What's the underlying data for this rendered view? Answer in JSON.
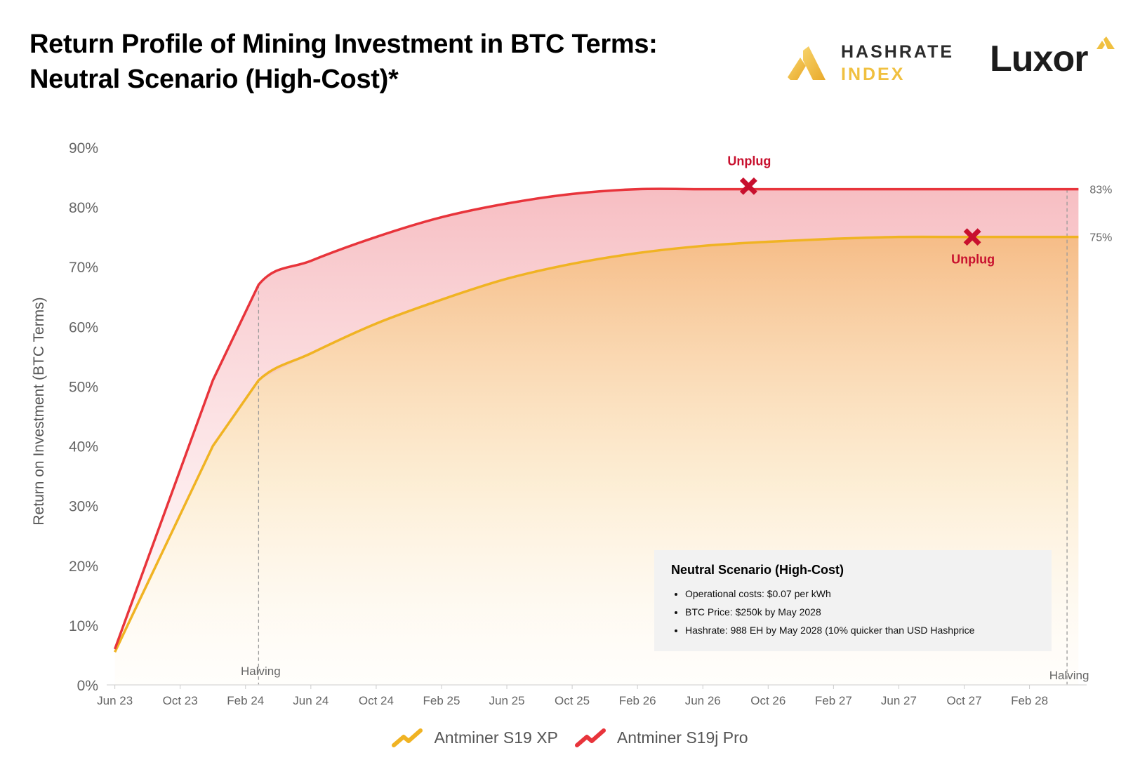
{
  "header": {
    "title_line1": "Return Profile of Mining Investment in BTC Terms:",
    "title_line2": "Neutral Scenario (High-Cost)*"
  },
  "logos": {
    "hashrate_index_line1": "HASHRATE",
    "hashrate_index_line2": "INDEX",
    "luxor": "Luxor"
  },
  "colors": {
    "s19xp": "#f0b323",
    "s19xp_fill": "#f5b57a",
    "s19j_pro": "#e8343b",
    "s19j_pro_fill": "#f4a8ae",
    "unplug": "#c8102e",
    "halving_line": "#9a9a9a",
    "axis_text": "#666666"
  },
  "chart_data": {
    "type": "area",
    "title": "Return Profile of Mining Investment in BTC Terms: Neutral Scenario (High-Cost)*",
    "ylabel": "Return on Investment (BTC Terms)",
    "xlabel": "",
    "ylim": [
      0,
      90
    ],
    "yticks": [
      0,
      10,
      20,
      30,
      40,
      50,
      60,
      70,
      80,
      90
    ],
    "ytick_labels": [
      "0%",
      "10%",
      "20%",
      "30%",
      "40%",
      "50%",
      "60%",
      "70%",
      "80%",
      "90%"
    ],
    "xlim_months": [
      -0.5,
      59.5
    ],
    "x_ticks": [
      {
        "label": "Jun 23",
        "m": 0
      },
      {
        "label": "Oct 23",
        "m": 4
      },
      {
        "label": "Feb 24",
        "m": 8
      },
      {
        "label": "Jun 24",
        "m": 12
      },
      {
        "label": "Oct 24",
        "m": 16
      },
      {
        "label": "Feb 25",
        "m": 20
      },
      {
        "label": "Jun 25",
        "m": 24
      },
      {
        "label": "Oct 25",
        "m": 28
      },
      {
        "label": "Feb 26",
        "m": 32
      },
      {
        "label": "Jun 26",
        "m": 36
      },
      {
        "label": "Oct 26",
        "m": 40
      },
      {
        "label": "Feb 27",
        "m": 44
      },
      {
        "label": "Jun 27",
        "m": 48
      },
      {
        "label": "Oct 27",
        "m": 52
      },
      {
        "label": "Feb 28",
        "m": 56
      }
    ],
    "series": [
      {
        "name": "Antminer S19 XP",
        "color_key": "s19xp",
        "m": [
          0,
          2,
          4,
          6,
          8.8,
          12,
          16,
          20,
          24,
          28,
          32,
          36,
          40,
          44,
          48,
          52,
          56,
          59
        ],
        "values": [
          5.5,
          17,
          28.5,
          40,
          51,
          55.5,
          60.5,
          64.5,
          68,
          70.5,
          72.3,
          73.5,
          74.2,
          74.7,
          75,
          75,
          75,
          75
        ],
        "end_label": "75%",
        "unplug": {
          "m": 52.5,
          "value": 75,
          "label": "Unplug",
          "label_position": "below"
        }
      },
      {
        "name": "Antminer S19j Pro",
        "color_key": "s19j_pro",
        "m": [
          0,
          2,
          4,
          6,
          8.8,
          12,
          16,
          20,
          24,
          28,
          32,
          36,
          40,
          44,
          48,
          52,
          56,
          59
        ],
        "values": [
          6,
          21,
          36,
          51,
          67,
          71,
          75,
          78.3,
          80.6,
          82.2,
          83,
          83,
          83,
          83,
          83,
          83,
          83,
          83
        ],
        "end_label": "83%",
        "unplug": {
          "m": 38.8,
          "value": 83.5,
          "label": "Unplug",
          "label_position": "above"
        }
      }
    ],
    "annotations": [
      {
        "type": "vline",
        "label": "Halving",
        "m": 8.8,
        "from": 0,
        "to": 67
      },
      {
        "type": "vline",
        "label": "Halving",
        "m": 58.3,
        "from": 0,
        "to": 83
      }
    ]
  },
  "note": {
    "title": "Neutral Scenario (High-Cost)",
    "bullets": [
      "Operational costs: $0.07 per kWh",
      "BTC Price: $250k by May 2028",
      "Hashrate: 988 EH by May 2028 (10% quicker than USD Hashprice"
    ]
  },
  "legend": {
    "items": [
      {
        "label": "Antminer S19 XP",
        "color_key": "s19xp"
      },
      {
        "label": "Antminer S19j Pro",
        "color_key": "s19j_pro"
      }
    ]
  }
}
